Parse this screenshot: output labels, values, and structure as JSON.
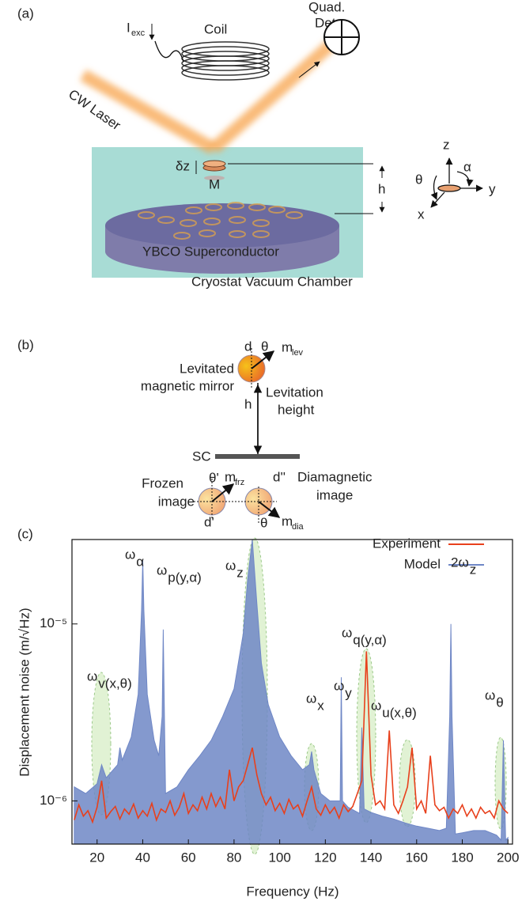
{
  "panel_a": {
    "label": "(a)",
    "current": {
      "symbol": "I",
      "sub": "exc"
    },
    "coil": "Coil",
    "detector": [
      "Quad.",
      "Det."
    ],
    "laser": "CW Laser",
    "dz": "δz",
    "magnet": "M",
    "height": "h",
    "superconductor": "YBCO Superconductor",
    "chamber": "Cryostat Vacuum Chamber",
    "axes": {
      "z": "z",
      "alpha": "α",
      "theta": "θ",
      "y": "y",
      "x": "x"
    }
  },
  "panel_b": {
    "label": "(b)",
    "d": "d",
    "theta": "θ",
    "m_lev": {
      "symbol": "m",
      "sub": "lev"
    },
    "levitated": [
      "Levitated",
      "magnetic mirror"
    ],
    "levitation": [
      "Levitation",
      "height"
    ],
    "h": "h",
    "sc": "SC",
    "frozen": [
      "Frozen",
      "image"
    ],
    "theta_prime": "θ'",
    "m_frz": {
      "symbol": "m",
      "sub": "frz"
    },
    "d2": "d''",
    "diamagnetic": [
      "Diamagnetic",
      "image"
    ],
    "d1": "d'",
    "theta2": "θ",
    "m_dia": {
      "symbol": "m",
      "sub": "dia"
    }
  },
  "chart_data": {
    "type": "line",
    "panel": "(c)",
    "x_label": "Frequency (Hz)",
    "y_label": "Displacement noise (m/√Hz)",
    "log_y": true,
    "xlim": [
      9,
      202
    ],
    "xticks": [
      20,
      40,
      60,
      80,
      100,
      120,
      140,
      160,
      180,
      200
    ],
    "ylim": [
      5.7e-07,
      3e-05
    ],
    "yticks": [
      {
        "value": 1e-06,
        "label": "10⁻⁶"
      },
      {
        "value": 1e-05,
        "label": "10⁻⁵"
      }
    ],
    "legend": "upper right",
    "series": [
      {
        "name": "Experiment",
        "color": "#e8401c",
        "fill": false,
        "x": [
          10,
          12,
          14,
          16,
          18,
          20,
          22,
          24,
          26,
          28,
          30,
          32,
          34,
          36,
          38,
          40,
          42,
          44,
          46,
          48,
          50,
          52,
          54,
          56,
          58,
          60,
          62,
          64,
          66,
          68,
          70,
          72,
          74,
          76,
          78,
          80,
          82,
          84,
          86,
          88,
          90,
          92,
          94,
          96,
          98,
          100,
          102,
          104,
          106,
          108,
          110,
          112,
          114,
          116,
          118,
          120,
          122,
          124,
          126,
          128,
          130,
          132,
          134,
          136,
          138,
          140,
          142,
          144,
          146,
          148,
          150,
          152,
          154,
          156,
          158,
          160,
          162,
          164,
          166,
          168,
          170,
          172,
          174,
          176,
          178,
          180,
          182,
          184,
          186,
          188,
          190,
          192,
          194,
          196,
          198,
          200
        ],
        "values": [
          7.8e-07,
          9.5e-07,
          8.2e-07,
          8.8e-07,
          7.6e-07,
          9.2e-07,
          1.3e-06,
          8e-07,
          8.7e-07,
          9.3e-07,
          7.9e-07,
          9e-07,
          8.4e-07,
          9.6e-07,
          8e-07,
          8.8e-07,
          8.2e-07,
          9.7e-07,
          7.8e-07,
          9e-07,
          8.6e-07,
          1e-06,
          8.3e-07,
          9.2e-07,
          1.1e-06,
          8.5e-07,
          9.5e-07,
          8.8e-07,
          1.05e-06,
          9e-07,
          1.1e-06,
          9.3e-07,
          1.05e-06,
          9e-07,
          1.5e-06,
          1e-06,
          1.2e-06,
          1.3e-06,
          1.6e-06,
          2e-06,
          1.4e-06,
          1.1e-06,
          9.5e-07,
          1.05e-06,
          8.8e-07,
          9.7e-07,
          8.5e-07,
          1.02e-06,
          9e-07,
          9.5e-07,
          8.2e-07,
          1e-06,
          1.2e-06,
          9e-07,
          8.3e-07,
          9.5e-07,
          8.5e-07,
          9.2e-07,
          8e-07,
          9.5e-07,
          8.7e-07,
          9.3e-07,
          1.1e-06,
          1.3e-06,
          7e-06,
          1.4e-06,
          9.5e-07,
          1e-06,
          9e-07,
          2.5e-06,
          9.5e-07,
          8.5e-07,
          1e-06,
          1.2e-06,
          2e-06,
          9e-07,
          1e-06,
          8.5e-07,
          1.8e-06,
          9.5e-07,
          8.8e-07,
          9.2e-07,
          8e-07,
          9e-07,
          8.5e-07,
          9.5e-07,
          8.2e-07,
          9e-07,
          8e-07,
          9.2e-07,
          8.5e-07,
          8.8e-07,
          8e-07,
          1e-06,
          9e-07,
          8.5e-07
        ]
      },
      {
        "name": "Model",
        "color": "#6f87c6",
        "fill": true,
        "x": [
          10,
          15,
          20,
          22,
          24,
          29,
          30,
          31,
          35,
          38,
          39.5,
          40,
          40.5,
          42,
          45,
          47,
          48.5,
          49,
          49.5,
          50,
          55,
          60,
          65,
          70,
          75,
          80,
          84,
          86,
          88,
          90,
          92,
          95,
          100,
          105,
          110,
          113,
          114,
          115,
          118,
          122,
          126.5,
          127,
          127.5,
          130,
          135,
          136,
          137,
          140,
          145,
          150,
          155,
          160,
          165,
          170,
          173,
          174.5,
          175,
          175.5,
          177,
          180,
          185,
          190,
          195,
          197,
          198,
          199,
          200
        ],
        "values": [
          1.2e-06,
          1.1e-06,
          1.25e-06,
          1.6e-06,
          1.35e-06,
          1.6e-06,
          2e-06,
          1.7e-06,
          2.3e-06,
          4e-06,
          1.2e-05,
          2.3e-05,
          1.2e-05,
          4e-06,
          2.2e-06,
          1.8e-06,
          3e-06,
          9.3e-06,
          3e-06,
          1.1e-06,
          1.2e-06,
          1.5e-06,
          1.8e-06,
          2.2e-06,
          3e-06,
          4.3e-06,
          8.8e-06,
          1.8e-05,
          3e-05,
          1.3e-05,
          6e-06,
          3.5e-06,
          2.3e-06,
          1.8e-06,
          1.5e-06,
          1.6e-06,
          1.9e-06,
          1.5e-06,
          1.1e-06,
          1e-06,
          1e-06,
          5e-06,
          1e-06,
          9.2e-07,
          8.5e-07,
          2.6e-06,
          9e-07,
          8.6e-07,
          8.2e-07,
          7.9e-07,
          7.5e-07,
          7.2e-07,
          7e-07,
          6.8e-07,
          7e-07,
          3e-06,
          1e-05,
          3e-06,
          6.5e-07,
          6.6e-07,
          6.8e-07,
          6.8e-07,
          6.4e-07,
          6e-07,
          2.2e-06,
          6e-07,
          6.2e-07
        ]
      }
    ],
    "annotations": [
      {
        "symbol": "ω",
        "sub": "α"
      },
      {
        "symbol": "ω",
        "sub": "p(y,α)"
      },
      {
        "symbol": "ω",
        "sub": "z"
      },
      {
        "symbol": "ω",
        "sub": "q(y,α)"
      },
      {
        "symbol": "2ω",
        "sub": "z"
      },
      {
        "symbol": "ω",
        "sub": "y"
      },
      {
        "symbol": "ω",
        "sub": "x"
      },
      {
        "symbol": "ω",
        "sub": "u(x,θ)"
      },
      {
        "symbol": "ω",
        "sub": "v(x,θ)"
      },
      {
        "symbol": "ω",
        "sub": "θ"
      }
    ]
  }
}
